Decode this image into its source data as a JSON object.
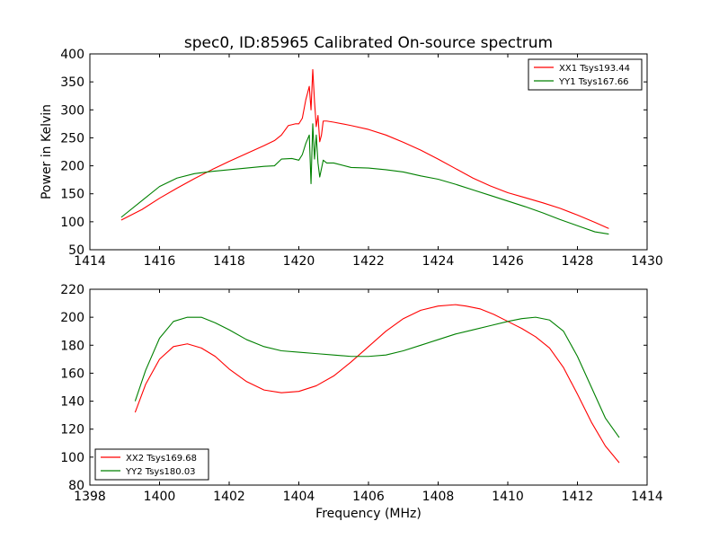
{
  "page_title": "spec0, ID:85965 Calibrated On-source spectrum",
  "chart_data": [
    {
      "type": "line",
      "title": "spec0, ID:85965 Calibrated On-source spectrum",
      "xlabel": "",
      "ylabel": "Power in Kelvin",
      "xlim": [
        1414,
        1430
      ],
      "ylim": [
        50,
        400
      ],
      "xticks": [
        1414,
        1416,
        1418,
        1420,
        1422,
        1424,
        1426,
        1428,
        1430
      ],
      "yticks": [
        50,
        100,
        150,
        200,
        250,
        300,
        350,
        400
      ],
      "legend_position": "upper-right",
      "series": [
        {
          "name": "XX1 Tsys193.44",
          "color": "#ff0000",
          "x": [
            1414.9,
            1415.5,
            1416.0,
            1416.5,
            1417.0,
            1417.5,
            1418.0,
            1418.5,
            1419.0,
            1419.3,
            1419.5,
            1419.7,
            1419.9,
            1420.0,
            1420.1,
            1420.2,
            1420.25,
            1420.3,
            1420.35,
            1420.4,
            1420.45,
            1420.5,
            1420.55,
            1420.6,
            1420.65,
            1420.7,
            1420.8,
            1421.0,
            1421.5,
            1422.0,
            1422.5,
            1423.0,
            1423.5,
            1424.0,
            1424.5,
            1425.0,
            1425.5,
            1426.0,
            1426.5,
            1427.0,
            1427.5,
            1428.0,
            1428.5,
            1428.9
          ],
          "y": [
            103,
            122,
            142,
            160,
            177,
            193,
            208,
            222,
            236,
            245,
            255,
            272,
            275,
            275,
            285,
            318,
            330,
            342,
            300,
            372,
            315,
            270,
            290,
            243,
            255,
            280,
            280,
            278,
            272,
            265,
            255,
            242,
            228,
            212,
            195,
            178,
            164,
            152,
            143,
            134,
            124,
            112,
            99,
            88
          ]
        },
        {
          "name": "YY1 Tsys167.66",
          "color": "#008000",
          "x": [
            1414.9,
            1415.5,
            1416.0,
            1416.5,
            1417.0,
            1417.5,
            1418.0,
            1418.5,
            1419.0,
            1419.3,
            1419.5,
            1419.8,
            1420.0,
            1420.1,
            1420.2,
            1420.3,
            1420.35,
            1420.4,
            1420.45,
            1420.5,
            1420.55,
            1420.6,
            1420.7,
            1420.8,
            1421.0,
            1421.5,
            1422.0,
            1422.5,
            1423.0,
            1423.5,
            1424.0,
            1424.5,
            1425.0,
            1425.5,
            1426.0,
            1426.5,
            1427.0,
            1427.5,
            1428.0,
            1428.5,
            1428.9
          ],
          "y": [
            108,
            138,
            163,
            178,
            186,
            190,
            193,
            196,
            199,
            200,
            212,
            213,
            210,
            220,
            240,
            255,
            168,
            275,
            212,
            255,
            205,
            180,
            210,
            205,
            205,
            197,
            196,
            193,
            189,
            182,
            176,
            167,
            157,
            147,
            137,
            127,
            116,
            104,
            93,
            82,
            78
          ]
        }
      ]
    },
    {
      "type": "line",
      "title": "",
      "xlabel": "Frequency (MHz)",
      "ylabel": "",
      "xlim": [
        1398,
        1414
      ],
      "ylim": [
        80,
        220
      ],
      "xticks": [
        1398,
        1400,
        1402,
        1404,
        1406,
        1408,
        1410,
        1412,
        1414
      ],
      "yticks": [
        80,
        100,
        120,
        140,
        160,
        180,
        200,
        220
      ],
      "legend_position": "lower-left",
      "series": [
        {
          "name": "XX2 Tsys169.68",
          "color": "#ff0000",
          "x": [
            1399.3,
            1399.6,
            1400.0,
            1400.4,
            1400.8,
            1401.2,
            1401.6,
            1402.0,
            1402.5,
            1403.0,
            1403.5,
            1404.0,
            1404.5,
            1405.0,
            1405.5,
            1406.0,
            1406.5,
            1407.0,
            1407.5,
            1408.0,
            1408.5,
            1408.8,
            1409.2,
            1409.6,
            1410.0,
            1410.4,
            1410.8,
            1411.2,
            1411.6,
            1412.0,
            1412.4,
            1412.8,
            1413.2
          ],
          "y": [
            132,
            152,
            170,
            179,
            181,
            178,
            172,
            163,
            154,
            148,
            146,
            147,
            151,
            158,
            168,
            179,
            190,
            199,
            205,
            208,
            209,
            208,
            206,
            202,
            197,
            192,
            186,
            178,
            164,
            145,
            125,
            108,
            96
          ]
        },
        {
          "name": "YY2 Tsys180.03",
          "color": "#008000",
          "x": [
            1399.3,
            1399.6,
            1400.0,
            1400.4,
            1400.8,
            1401.2,
            1401.6,
            1402.0,
            1402.5,
            1403.0,
            1403.5,
            1404.0,
            1404.5,
            1405.0,
            1405.5,
            1406.0,
            1406.5,
            1407.0,
            1407.5,
            1408.0,
            1408.5,
            1409.0,
            1409.5,
            1410.0,
            1410.4,
            1410.8,
            1411.2,
            1411.6,
            1412.0,
            1412.4,
            1412.8,
            1413.2
          ],
          "y": [
            140,
            162,
            185,
            197,
            200,
            200,
            196,
            191,
            184,
            179,
            176,
            175,
            174,
            173,
            172,
            172,
            173,
            176,
            180,
            184,
            188,
            191,
            194,
            197,
            199,
            200,
            198,
            190,
            172,
            150,
            128,
            114
          ]
        }
      ]
    }
  ]
}
